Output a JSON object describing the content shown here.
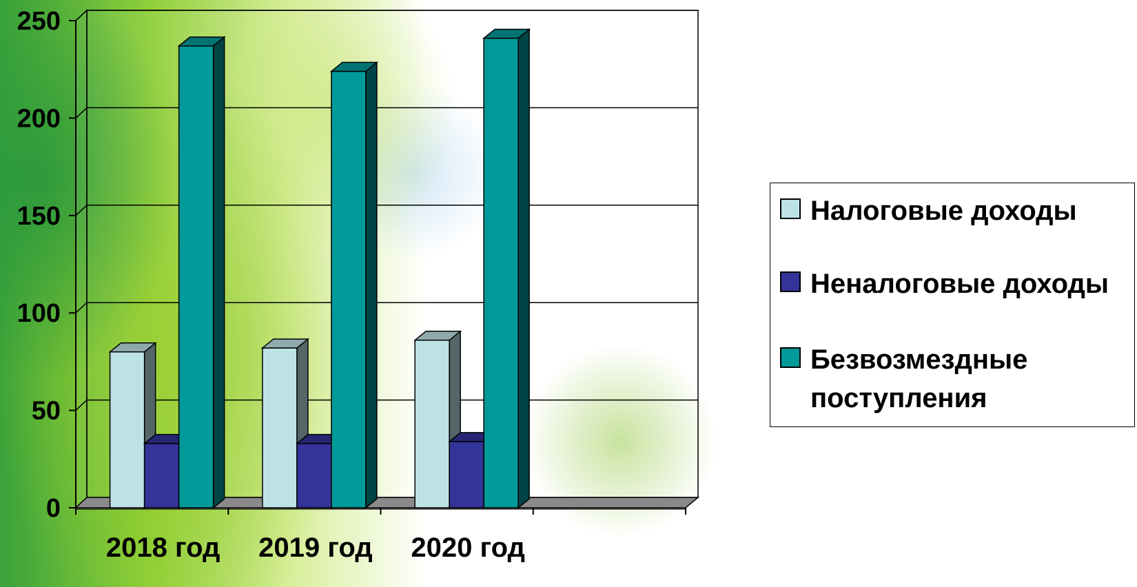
{
  "chart_data": {
    "type": "bar",
    "categories": [
      "2018 год",
      "2019 год",
      "2020 год",
      ""
    ],
    "series": [
      {
        "name": "Налоговые доходы",
        "values": [
          80,
          82,
          86,
          null
        ],
        "color": "#bde2e6"
      },
      {
        "name": "Неналоговые доходы",
        "values": [
          33,
          33,
          34,
          null
        ],
        "color": "#33339a"
      },
      {
        "name": "Безвозмездные поступления",
        "values": [
          237,
          224,
          241,
          null
        ],
        "color": "#009a9a"
      }
    ],
    "yticks": [
      0,
      50,
      100,
      150,
      200,
      250
    ],
    "ylim": [
      0,
      250
    ],
    "grid": true,
    "legend_position": "right"
  }
}
